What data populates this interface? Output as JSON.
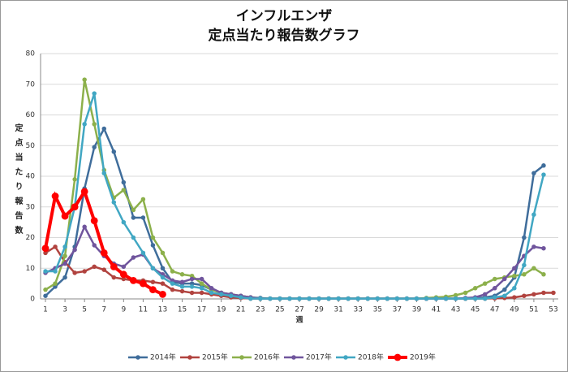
{
  "chart_data": {
    "type": "line",
    "title": "インフルエンザ",
    "subtitle": "定点当たり報告数グラフ",
    "y_label": "定点当たり報告数",
    "x_label": "週",
    "x": [
      1,
      2,
      3,
      4,
      5,
      6,
      7,
      8,
      9,
      10,
      11,
      12,
      13,
      14,
      15,
      16,
      17,
      18,
      19,
      20,
      21,
      22,
      23,
      24,
      25,
      26,
      27,
      28,
      29,
      30,
      31,
      32,
      33,
      34,
      35,
      36,
      37,
      38,
      39,
      40,
      41,
      42,
      43,
      44,
      45,
      46,
      47,
      48,
      49,
      50,
      51,
      52,
      53
    ],
    "xlim": [
      0.5,
      53.5
    ],
    "xticks": [
      1,
      3,
      5,
      7,
      9,
      11,
      13,
      15,
      17,
      19,
      21,
      23,
      25,
      27,
      29,
      31,
      33,
      35,
      37,
      39,
      41,
      43,
      45,
      47,
      49,
      51,
      53
    ],
    "ylim": [
      0,
      80
    ],
    "yticks": [
      0,
      10,
      20,
      30,
      40,
      50,
      60,
      70,
      80
    ],
    "grid": true,
    "legend": "bottom",
    "series": [
      {
        "name": "2014年",
        "color": "#3f6d9b",
        "line_width": 2.5,
        "values": [
          1,
          4,
          7,
          17,
          36,
          49.5,
          55.5,
          48,
          38,
          26.5,
          26.5,
          17.5,
          10,
          5.5,
          5,
          5,
          4.5,
          3,
          2,
          1.5,
          1,
          0.5,
          0.3,
          0.1,
          0.1,
          0.1,
          0.1,
          0.1,
          0.1,
          0.1,
          0.1,
          0.1,
          0.1,
          0.1,
          0.1,
          0.1,
          0.1,
          0.1,
          0.1,
          0.1,
          0.1,
          0.1,
          0.1,
          0.1,
          0.2,
          0.5,
          1,
          3,
          7,
          20,
          41,
          43.5,
          null
        ]
      },
      {
        "name": "2015年",
        "color": "#b1433f",
        "line_width": 2.5,
        "values": [
          15,
          17,
          12,
          8.5,
          9,
          10.5,
          9.5,
          7,
          6.5,
          6,
          6,
          5.5,
          5,
          3,
          2.5,
          2,
          2,
          1.5,
          1,
          0.5,
          0.3,
          0.1,
          0.1,
          0.1,
          0.1,
          0.1,
          0.1,
          0.1,
          0.1,
          0.1,
          0.1,
          0.1,
          0.1,
          0.1,
          0.1,
          0.1,
          0.1,
          0.1,
          0.1,
          0.1,
          0.1,
          0.1,
          0.1,
          0.1,
          0.1,
          0.1,
          0.2,
          0.3,
          0.5,
          1,
          1.5,
          2,
          2
        ]
      },
      {
        "name": "2016年",
        "color": "#8cb04b",
        "line_width": 2.5,
        "values": [
          3,
          5,
          14,
          39,
          71.5,
          57,
          42,
          33,
          35.5,
          29,
          32.5,
          20,
          15,
          9,
          8,
          7.5,
          5,
          3,
          2,
          1.5,
          1,
          0.5,
          0.1,
          0.1,
          0.1,
          0.1,
          0.1,
          0.1,
          0.1,
          0.1,
          0.1,
          0.1,
          0.1,
          0.1,
          0.1,
          0.1,
          0.1,
          0.1,
          0.1,
          0.3,
          0.5,
          0.7,
          1.2,
          2,
          3.5,
          5,
          6.5,
          7,
          7.5,
          8,
          10,
          8,
          null
        ]
      },
      {
        "name": "2017年",
        "color": "#70559d",
        "line_width": 2.5,
        "values": [
          8.5,
          10,
          11.5,
          16,
          23.5,
          17.5,
          14,
          11.5,
          10.5,
          13.5,
          14.5,
          10,
          8,
          6,
          5.5,
          6.5,
          6.5,
          3.5,
          2,
          1.5,
          1,
          0.5,
          0.1,
          0.1,
          0.1,
          0.1,
          0.1,
          0.1,
          0.1,
          0.1,
          0.1,
          0.1,
          0.1,
          0.1,
          0.1,
          0.1,
          0.1,
          0.1,
          0.1,
          0.1,
          0.1,
          0.1,
          0.1,
          0.3,
          0.5,
          1.5,
          3.5,
          6.5,
          10,
          14,
          17,
          16.5,
          null
        ]
      },
      {
        "name": "2018年",
        "color": "#41a7c3",
        "line_width": 2.5,
        "values": [
          9,
          9,
          17,
          30,
          57,
          67,
          41,
          31.5,
          25,
          20,
          15,
          10,
          7,
          5,
          4,
          4,
          3.5,
          2,
          1.5,
          1,
          0.5,
          0.1,
          0.1,
          0.1,
          0.1,
          0.1,
          0.1,
          0.1,
          0.1,
          0.1,
          0.1,
          0.1,
          0.1,
          0.1,
          0.1,
          0.1,
          0.1,
          0.1,
          0.1,
          0.1,
          0.1,
          0.1,
          0.1,
          0.1,
          0.1,
          0.1,
          0.5,
          1,
          3.5,
          11,
          27.5,
          40.5,
          null
        ]
      },
      {
        "name": "2019年",
        "color": "#ff0000",
        "line_width": 4,
        "values": [
          16.5,
          33.5,
          27,
          30,
          35,
          25.5,
          15,
          10.5,
          8,
          6,
          5,
          3,
          1.5,
          null,
          null,
          null,
          null,
          null,
          null,
          null,
          null,
          null,
          null,
          null,
          null,
          null,
          null,
          null,
          null,
          null,
          null,
          null,
          null,
          null,
          null,
          null,
          null,
          null,
          null,
          null,
          null,
          null,
          null,
          null,
          null,
          null,
          null,
          null,
          null,
          null,
          null,
          null,
          null
        ]
      }
    ]
  }
}
